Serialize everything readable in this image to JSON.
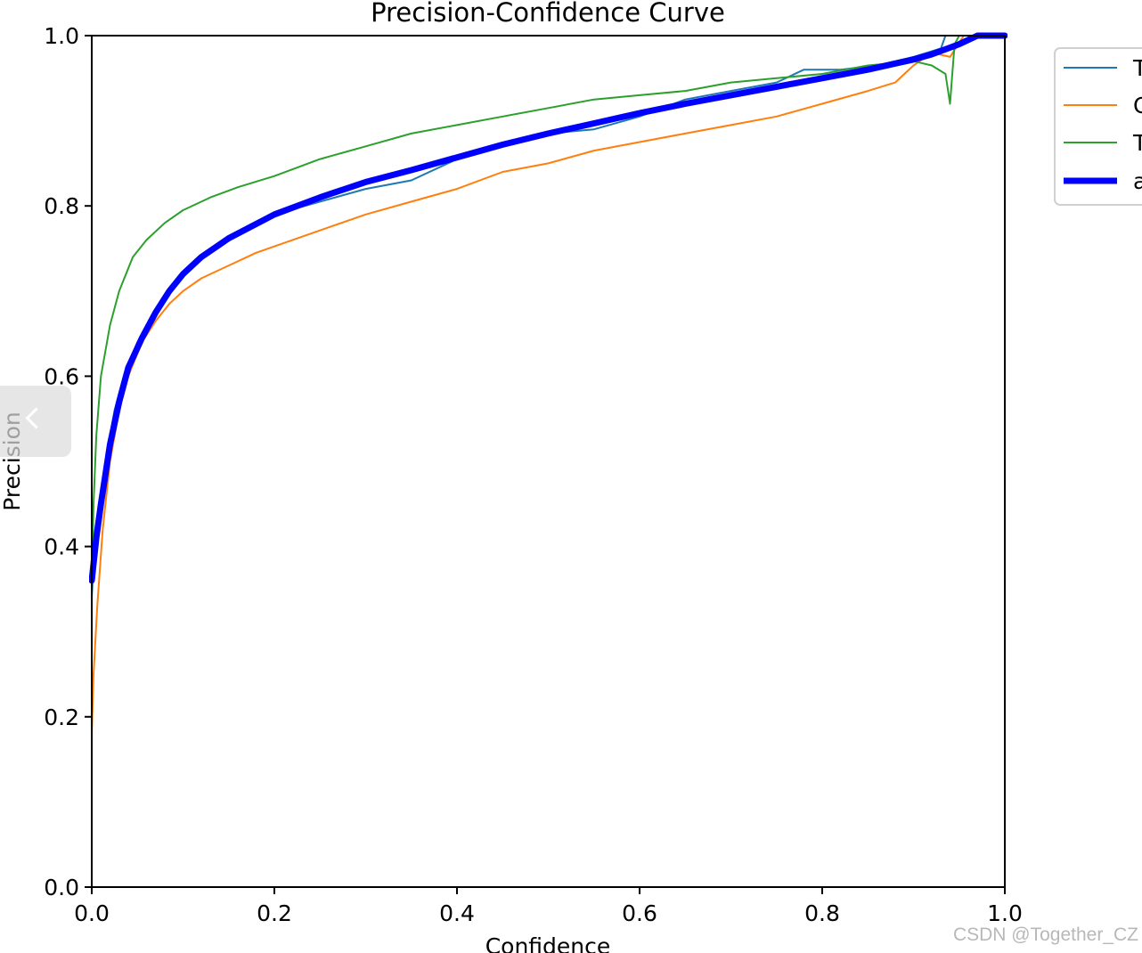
{
  "chart_data": {
    "type": "line",
    "title": "Precision-Confidence Curve",
    "xlabel": "Confidence",
    "ylabel": "Precision",
    "xlim": [
      0,
      1
    ],
    "ylim": [
      0,
      1
    ],
    "xticks": [
      "0.0",
      "0.2",
      "0.4",
      "0.6",
      "0.8",
      "1.0"
    ],
    "yticks": [
      "0.0",
      "0.2",
      "0.4",
      "0.6",
      "0.8",
      "1.0"
    ],
    "grid": false,
    "legend_position": "outside-top-right",
    "legend_entries_visible_text": [
      "T",
      "C",
      "T",
      "a"
    ],
    "series": [
      {
        "color": "#1f77b4",
        "linewidth": 2,
        "points": [
          [
            0.0,
            0.34
          ],
          [
            0.003,
            0.4
          ],
          [
            0.008,
            0.45
          ],
          [
            0.015,
            0.5
          ],
          [
            0.025,
            0.56
          ],
          [
            0.035,
            0.6
          ],
          [
            0.05,
            0.64
          ],
          [
            0.065,
            0.67
          ],
          [
            0.08,
            0.69
          ],
          [
            0.095,
            0.71
          ],
          [
            0.11,
            0.73
          ],
          [
            0.13,
            0.745
          ],
          [
            0.16,
            0.77
          ],
          [
            0.2,
            0.79
          ],
          [
            0.25,
            0.805
          ],
          [
            0.3,
            0.82
          ],
          [
            0.35,
            0.83
          ],
          [
            0.4,
            0.855
          ],
          [
            0.45,
            0.87
          ],
          [
            0.5,
            0.885
          ],
          [
            0.55,
            0.89
          ],
          [
            0.6,
            0.905
          ],
          [
            0.65,
            0.925
          ],
          [
            0.7,
            0.935
          ],
          [
            0.75,
            0.945
          ],
          [
            0.78,
            0.96
          ],
          [
            0.82,
            0.96
          ],
          [
            0.86,
            0.965
          ],
          [
            0.9,
            0.975
          ],
          [
            0.93,
            0.985
          ],
          [
            0.935,
            1.0
          ],
          [
            1.0,
            1.0
          ]
        ]
      },
      {
        "color": "#ff7f0e",
        "linewidth": 2,
        "points": [
          [
            0.0,
            0.18
          ],
          [
            0.002,
            0.25
          ],
          [
            0.006,
            0.33
          ],
          [
            0.012,
            0.42
          ],
          [
            0.02,
            0.5
          ],
          [
            0.03,
            0.56
          ],
          [
            0.04,
            0.6
          ],
          [
            0.055,
            0.64
          ],
          [
            0.07,
            0.665
          ],
          [
            0.085,
            0.685
          ],
          [
            0.1,
            0.7
          ],
          [
            0.12,
            0.715
          ],
          [
            0.15,
            0.73
          ],
          [
            0.18,
            0.745
          ],
          [
            0.22,
            0.76
          ],
          [
            0.26,
            0.775
          ],
          [
            0.3,
            0.79
          ],
          [
            0.35,
            0.805
          ],
          [
            0.4,
            0.82
          ],
          [
            0.45,
            0.84
          ],
          [
            0.5,
            0.85
          ],
          [
            0.55,
            0.865
          ],
          [
            0.6,
            0.875
          ],
          [
            0.65,
            0.885
          ],
          [
            0.7,
            0.895
          ],
          [
            0.75,
            0.905
          ],
          [
            0.8,
            0.92
          ],
          [
            0.85,
            0.935
          ],
          [
            0.88,
            0.945
          ],
          [
            0.9,
            0.965
          ],
          [
            0.92,
            0.98
          ],
          [
            0.94,
            0.975
          ],
          [
            0.955,
            1.0
          ],
          [
            1.0,
            1.0
          ]
        ]
      },
      {
        "color": "#2ca02c",
        "linewidth": 2,
        "points": [
          [
            0.0,
            0.35
          ],
          [
            0.002,
            0.45
          ],
          [
            0.005,
            0.53
          ],
          [
            0.01,
            0.6
          ],
          [
            0.02,
            0.66
          ],
          [
            0.03,
            0.7
          ],
          [
            0.045,
            0.74
          ],
          [
            0.06,
            0.76
          ],
          [
            0.08,
            0.78
          ],
          [
            0.1,
            0.795
          ],
          [
            0.13,
            0.81
          ],
          [
            0.16,
            0.822
          ],
          [
            0.2,
            0.835
          ],
          [
            0.25,
            0.855
          ],
          [
            0.3,
            0.87
          ],
          [
            0.35,
            0.885
          ],
          [
            0.4,
            0.895
          ],
          [
            0.45,
            0.905
          ],
          [
            0.5,
            0.915
          ],
          [
            0.55,
            0.925
          ],
          [
            0.6,
            0.93
          ],
          [
            0.65,
            0.935
          ],
          [
            0.7,
            0.945
          ],
          [
            0.75,
            0.95
          ],
          [
            0.8,
            0.955
          ],
          [
            0.85,
            0.965
          ],
          [
            0.9,
            0.97
          ],
          [
            0.92,
            0.965
          ],
          [
            0.935,
            0.955
          ],
          [
            0.94,
            0.92
          ],
          [
            0.945,
            0.99
          ],
          [
            0.95,
            1.0
          ],
          [
            1.0,
            1.0
          ]
        ]
      },
      {
        "color": "#0000ff",
        "linewidth": 7,
        "points": [
          [
            0.0,
            0.36
          ],
          [
            0.005,
            0.41
          ],
          [
            0.01,
            0.45
          ],
          [
            0.02,
            0.52
          ],
          [
            0.03,
            0.57
          ],
          [
            0.04,
            0.61
          ],
          [
            0.055,
            0.645
          ],
          [
            0.07,
            0.675
          ],
          [
            0.085,
            0.7
          ],
          [
            0.1,
            0.72
          ],
          [
            0.12,
            0.74
          ],
          [
            0.15,
            0.762
          ],
          [
            0.2,
            0.79
          ],
          [
            0.25,
            0.81
          ],
          [
            0.3,
            0.828
          ],
          [
            0.35,
            0.842
          ],
          [
            0.4,
            0.857
          ],
          [
            0.45,
            0.872
          ],
          [
            0.5,
            0.885
          ],
          [
            0.55,
            0.897
          ],
          [
            0.6,
            0.909
          ],
          [
            0.65,
            0.92
          ],
          [
            0.7,
            0.93
          ],
          [
            0.75,
            0.94
          ],
          [
            0.8,
            0.95
          ],
          [
            0.85,
            0.96
          ],
          [
            0.9,
            0.972
          ],
          [
            0.92,
            0.978
          ],
          [
            0.95,
            0.99
          ],
          [
            0.97,
            1.0
          ],
          [
            1.0,
            1.0
          ]
        ]
      }
    ]
  },
  "watermark": {
    "text": "CSDN @Together_CZ"
  },
  "controls": {
    "prev_icon": "chevron-left-icon"
  }
}
